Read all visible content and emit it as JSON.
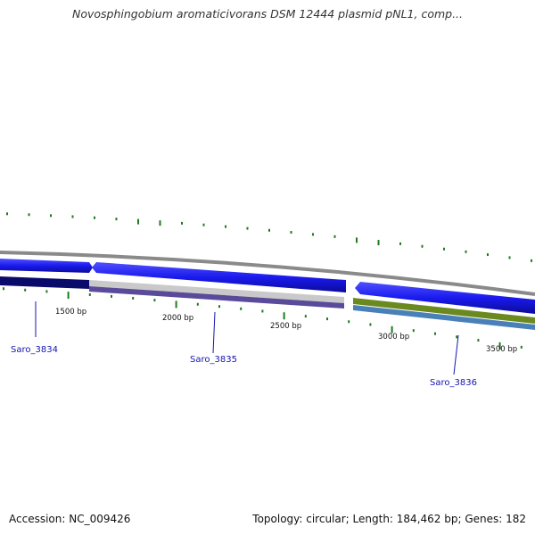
{
  "title": "Novosphingobium aromaticivorans DSM 12444 plasmid pNL1, comp...",
  "footer": {
    "accession": "Accession: NC_009426",
    "summary": "Topology: circular; Length: 184,462 bp; Genes: 182"
  },
  "scale": [
    {
      "label": "1500 bp"
    },
    {
      "label": "2000 bp"
    },
    {
      "label": "2500 bp"
    },
    {
      "label": "3000 bp"
    },
    {
      "label": "3500 bp"
    }
  ],
  "genes": [
    {
      "label": "Saro_3834"
    },
    {
      "label": "Saro_3835"
    },
    {
      "label": "Saro_3836"
    }
  ],
  "colors": {
    "backbone": "#888888",
    "cds": "#1a1aee",
    "cds_dark": "#0b0b8a",
    "tick": "#1f7a1f",
    "gene_label": "#1515b0",
    "track_navy": "#0a0a6a",
    "track_gray": "#c8c8c8",
    "track_purple": "#5a4a9a",
    "track_olive": "#6a8a20",
    "track_steel": "#4a80b8"
  }
}
